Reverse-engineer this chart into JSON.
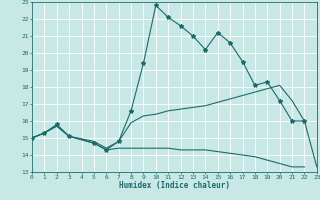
{
  "xlabel": "Humidex (Indice chaleur)",
  "xlim": [
    0,
    23
  ],
  "ylim": [
    13,
    23
  ],
  "xticks": [
    0,
    1,
    2,
    3,
    4,
    5,
    6,
    7,
    8,
    9,
    10,
    11,
    12,
    13,
    14,
    15,
    16,
    17,
    18,
    19,
    20,
    21,
    22,
    23
  ],
  "yticks": [
    13,
    14,
    15,
    16,
    17,
    18,
    19,
    20,
    21,
    22,
    23
  ],
  "bg_color": "#c8e8e6",
  "grid_color": "#ffffff",
  "line_color": "#1a6b6b",
  "line1_x": [
    0,
    1,
    2,
    3,
    5,
    6,
    7,
    8,
    9,
    10,
    11,
    12,
    13,
    14,
    15,
    16,
    17,
    18,
    19,
    20,
    21,
    22
  ],
  "line1_y": [
    15.0,
    15.3,
    15.8,
    15.1,
    14.7,
    14.3,
    14.8,
    16.6,
    19.4,
    22.8,
    22.1,
    21.6,
    21.0,
    20.2,
    21.2,
    20.6,
    19.5,
    18.1,
    18.3,
    17.2,
    16.0,
    16.0
  ],
  "line2_x": [
    0,
    1,
    2,
    3,
    5,
    6,
    7,
    8,
    9,
    10,
    11,
    12,
    13,
    14,
    15,
    16,
    17,
    18,
    19,
    20,
    21,
    22
  ],
  "line2_y": [
    15.0,
    15.3,
    15.7,
    15.1,
    14.8,
    14.4,
    14.8,
    15.9,
    16.3,
    16.4,
    16.6,
    16.7,
    16.8,
    16.9,
    17.1,
    17.3,
    17.5,
    17.7,
    17.9,
    18.1,
    17.2,
    16.0
  ],
  "line3_x": [
    0,
    1,
    2,
    3,
    5,
    6,
    7,
    8,
    9,
    10,
    11,
    12,
    13,
    14,
    15,
    16,
    17,
    18,
    19,
    20,
    21,
    22
  ],
  "line3_y": [
    15.0,
    15.3,
    15.7,
    15.1,
    14.7,
    14.3,
    14.4,
    14.4,
    14.4,
    14.4,
    14.4,
    14.3,
    14.3,
    14.3,
    14.2,
    14.1,
    14.0,
    13.9,
    13.7,
    13.5,
    13.3,
    13.3
  ],
  "line4_x": [
    22,
    23
  ],
  "line4_y": [
    16.0,
    13.3
  ]
}
